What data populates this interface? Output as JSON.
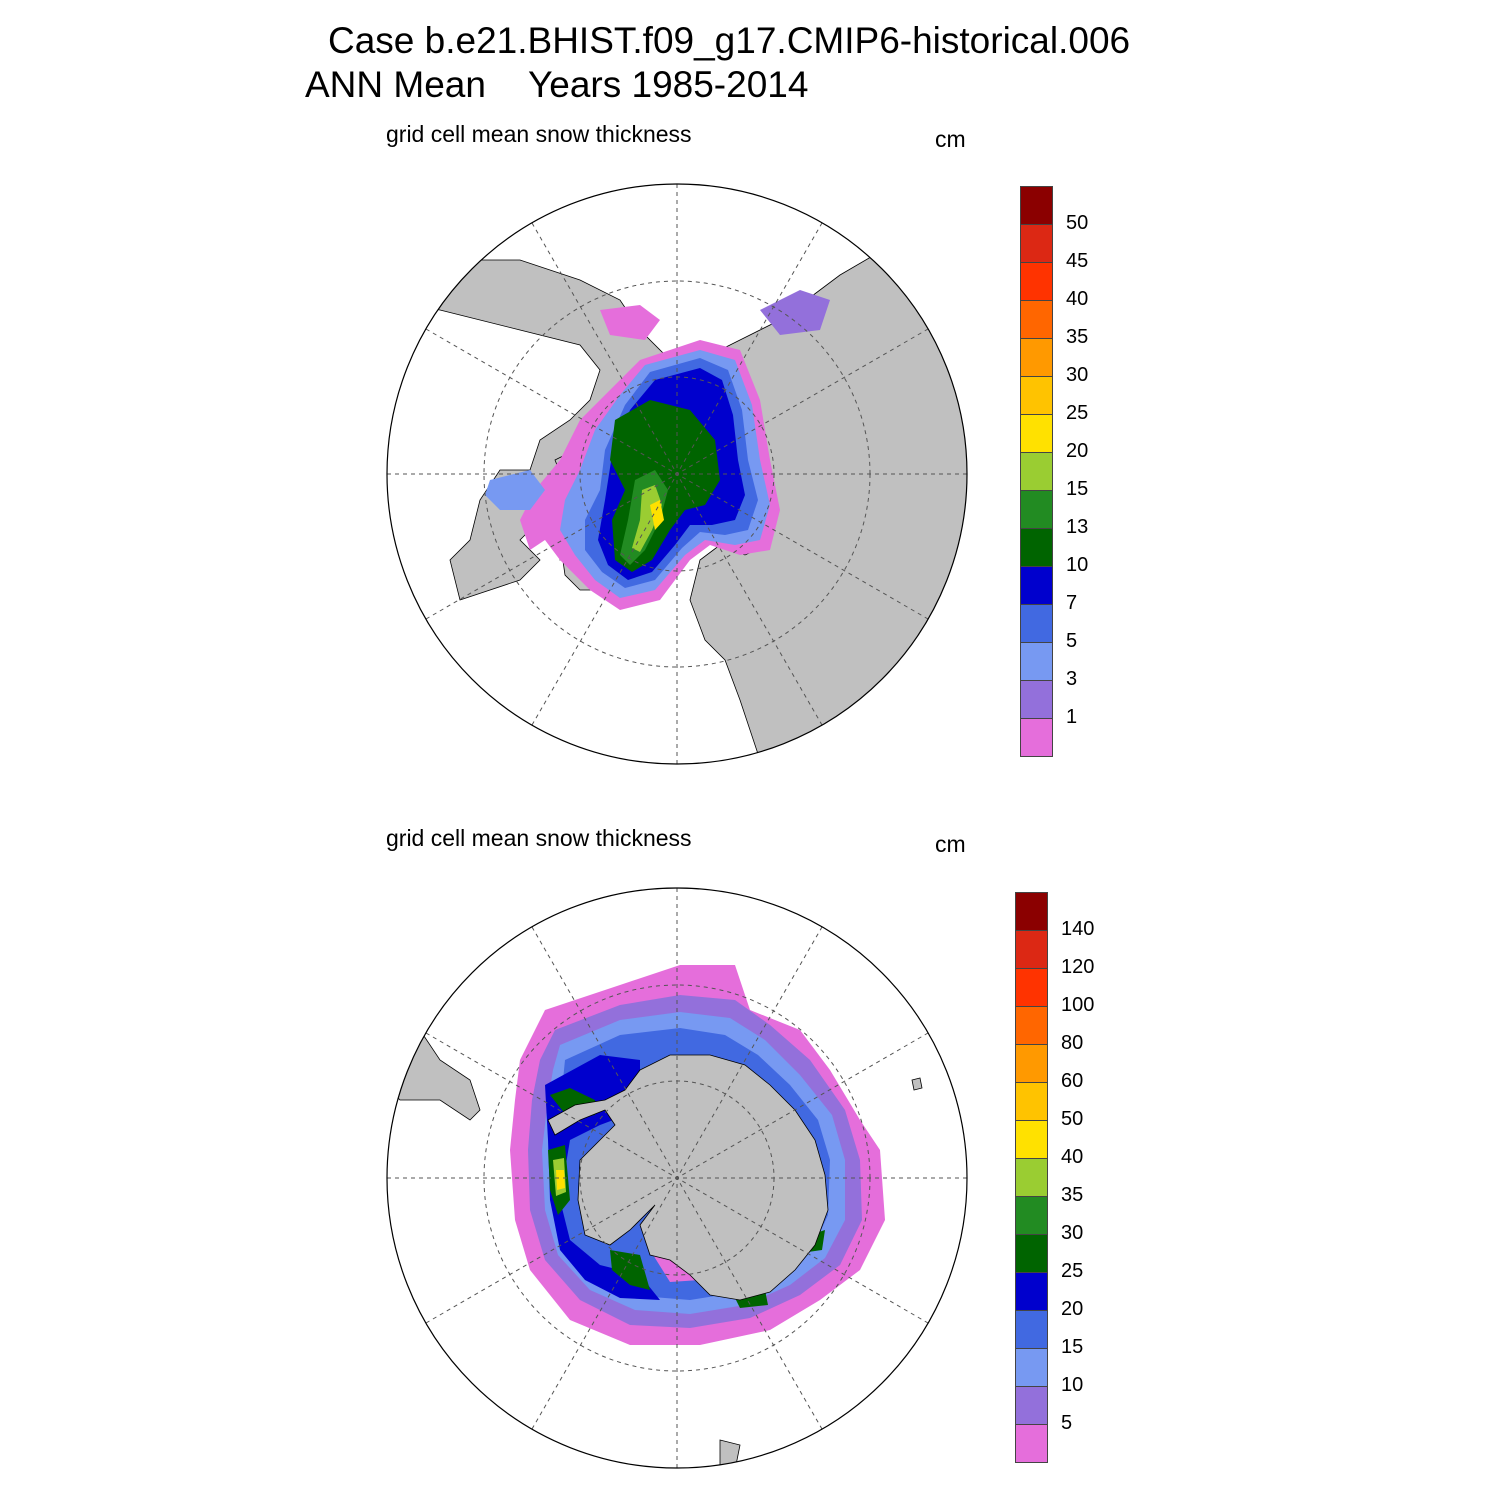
{
  "title": {
    "line1": "Case b.e21.BHIST.f09_g17.CMIP6-historical.006",
    "season": "ANN Mean",
    "years": "Years 1985-2014"
  },
  "panels": [
    {
      "subtitle": "grid cell mean snow thickness",
      "units": "cm",
      "hemisphere": "north",
      "colorbar": {
        "colors": [
          "#e56edb",
          "#9370db",
          "#7799f2",
          "#4169e1",
          "#0000cd",
          "#006400",
          "#228b22",
          "#9acd32",
          "#ffe100",
          "#ffc300",
          "#ff9900",
          "#ff6600",
          "#ff3300",
          "#dc2814",
          "#8b0000"
        ],
        "labels": [
          "1",
          "3",
          "5",
          "7",
          "10",
          "13",
          "15",
          "20",
          "25",
          "30",
          "35",
          "40",
          "45",
          "50"
        ]
      }
    },
    {
      "subtitle": "grid cell mean snow thickness",
      "units": "cm",
      "hemisphere": "south",
      "colorbar": {
        "colors": [
          "#e56edb",
          "#9370db",
          "#7799f2",
          "#4169e1",
          "#0000cd",
          "#006400",
          "#228b22",
          "#9acd32",
          "#ffe100",
          "#ffc300",
          "#ff9900",
          "#ff6600",
          "#ff3300",
          "#dc2814",
          "#8b0000"
        ],
        "labels": [
          "5",
          "10",
          "15",
          "20",
          "25",
          "30",
          "35",
          "40",
          "50",
          "60",
          "80",
          "100",
          "120",
          "140"
        ]
      }
    }
  ],
  "colors": {
    "land": "#c0c0c0",
    "ocean": "#ffffff",
    "grid": "#555555"
  }
}
